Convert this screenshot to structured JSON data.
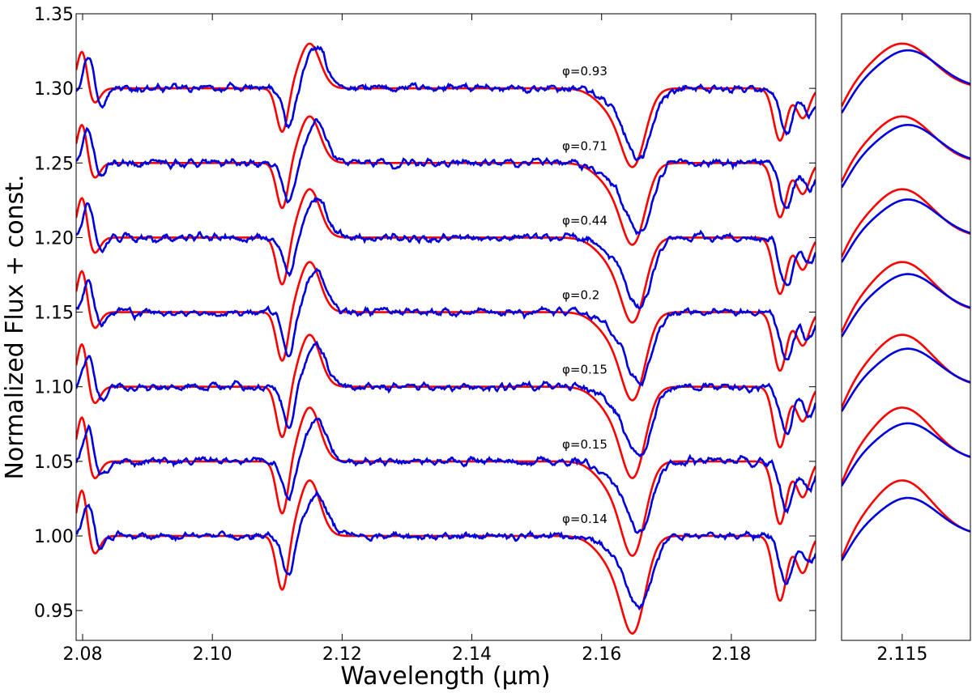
{
  "chart_data": [
    {
      "type": "line",
      "panel": "main",
      "xlabel": "Wavelength (μm)",
      "ylabel": "Normalized Flux + const.",
      "xlim": [
        2.079,
        2.193
      ],
      "ylim": [
        0.93,
        1.35
      ],
      "xticks": [
        2.08,
        2.1,
        2.12,
        2.14,
        2.16,
        2.18
      ],
      "xtick_labels": [
        "2.08",
        "2.10",
        "2.12",
        "2.14",
        "2.16",
        "2.18"
      ],
      "yticks": [
        0.95,
        1.0,
        1.05,
        1.1,
        1.15,
        1.2,
        1.25,
        1.3,
        1.35
      ],
      "ytick_labels": [
        "0.95",
        "1.00",
        "1.05",
        "1.10",
        "1.15",
        "1.20",
        "1.25",
        "1.30",
        "1.35"
      ],
      "grid": false,
      "legend": "none",
      "colors": {
        "model": "#ff0000",
        "observed": "#0000dd"
      },
      "phases": [
        {
          "label": "φ=0.93",
          "offset": 1.3
        },
        {
          "label": "φ=0.71",
          "offset": 1.25
        },
        {
          "label": "φ=0.44",
          "offset": 1.2
        },
        {
          "label": "φ=0.2",
          "offset": 1.15
        },
        {
          "label": "φ=0.15",
          "offset": 1.1
        },
        {
          "label": "φ=0.15",
          "offset": 1.05
        },
        {
          "label": "φ=0.14",
          "offset": 1.0
        }
      ],
      "features": [
        {
          "center": 2.08,
          "width": 0.0008,
          "depth": -0.028
        },
        {
          "center": 2.0815,
          "width": 0.001,
          "depth": 0.012
        },
        {
          "center": 2.1108,
          "width": 0.0009,
          "depth": 0.03
        },
        {
          "center": 2.115,
          "width": 0.0016,
          "depth": -0.03
        },
        {
          "center": 2.165,
          "width": 0.0018,
          "depth": 0.045
        },
        {
          "center": 2.162,
          "width": 0.0025,
          "depth": 0.015
        },
        {
          "center": 2.1875,
          "width": 0.001,
          "depth": 0.035
        },
        {
          "center": 2.191,
          "width": 0.001,
          "depth": 0.02
        }
      ],
      "blue_shift_um": 0.001,
      "blue_noise_amplitude": 0.0045
    },
    {
      "type": "line",
      "panel": "zoom",
      "xlim": [
        2.1118,
        2.1186
      ],
      "ylim": [
        0.93,
        1.35
      ],
      "xticks": [
        2.115
      ],
      "xtick_labels": [
        "2.115"
      ],
      "grid": false,
      "legend": "none"
    }
  ]
}
